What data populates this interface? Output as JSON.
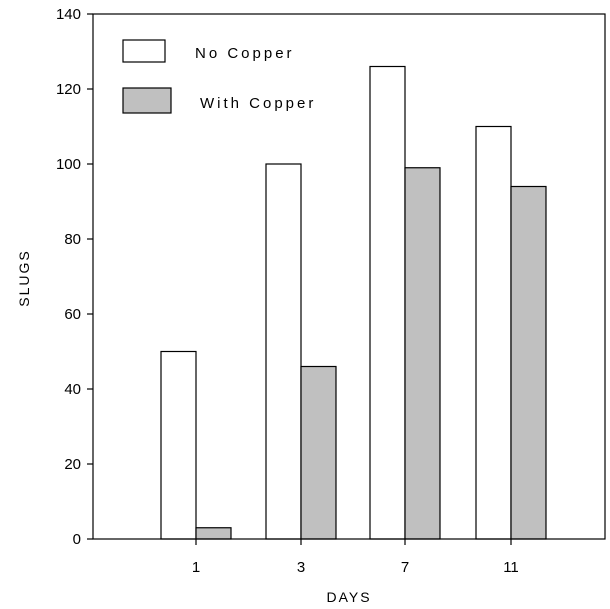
{
  "chart_data": {
    "type": "bar",
    "title": "",
    "xlabel": "DAYS",
    "ylabel": "SLUGS",
    "categories": [
      "1",
      "3",
      "7",
      "11"
    ],
    "series": [
      {
        "name": "No Copper",
        "values": [
          50,
          100,
          126,
          110
        ],
        "color": "#ffffff"
      },
      {
        "name": "With Copper",
        "values": [
          3,
          46,
          99,
          94
        ],
        "color": "#c0c0c0"
      }
    ],
    "ylim": [
      0,
      140
    ],
    "yticks": [
      0,
      20,
      40,
      60,
      80,
      100,
      120,
      140
    ],
    "grid": false,
    "legend": "top-left"
  }
}
